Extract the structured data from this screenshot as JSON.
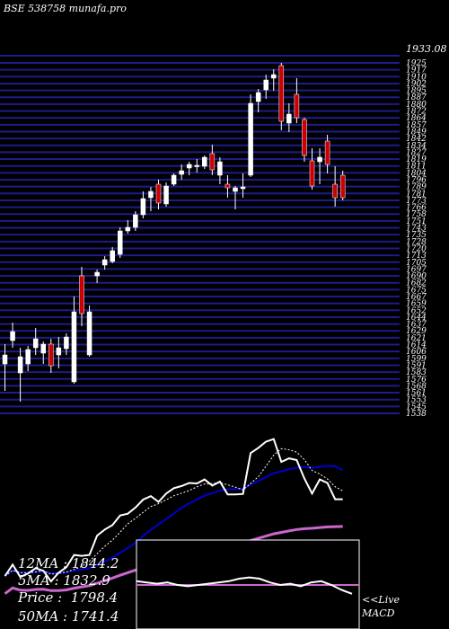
{
  "header": {
    "exchange": "BSE",
    "code": "538758",
    "site": "munafa.pro"
  },
  "stats": {
    "ma12_label": "12MA",
    "ma12": "1844.2",
    "ma5_label": "5MA",
    "ma5": "1832.9",
    "price_label": "Price",
    "price": "1798.4",
    "ma50_label": "50MA",
    "ma50": "1741.4"
  },
  "macd": {
    "label_top": "<<Live",
    "label_bottom": "MACD"
  },
  "colors": {
    "up": "#ffffff",
    "down": "#cc0000",
    "grid": "#1c1c8c",
    "ma12": "#ffffff",
    "ma5": "#ffffff",
    "ma26": "#0000cc",
    "ma50": "#cc66cc",
    "macd": "#ffffff",
    "signal": "#cc66cc"
  },
  "chart_data": {
    "type": "candlestick",
    "ylim": [
      1535,
      1933
    ],
    "top_label": "1933.08",
    "y_ticks": [
      "1925",
      "1917",
      "1910",
      "1902",
      "1895",
      "1887",
      "1880",
      "1872",
      "1864",
      "1857",
      "1849",
      "1842",
      "1834",
      "1827",
      "1819",
      "1811",
      "1804",
      "1796",
      "1789",
      "1781",
      "1773",
      "1766",
      "1758",
      "1751",
      "1743",
      "1735",
      "1728",
      "1720",
      "1713",
      "1705",
      "1697",
      "1690",
      "1682",
      "1675",
      "1667",
      "1659",
      "1652",
      "1644",
      "1637",
      "1629",
      "1621",
      "1614",
      "1606",
      "1599",
      "1591",
      "1583",
      "1576",
      "1568",
      "1561",
      "1553",
      "1545",
      "1538"
    ],
    "candles": [
      {
        "o": 1590,
        "h": 1612,
        "l": 1560,
        "c": 1600
      },
      {
        "o": 1616,
        "h": 1636,
        "l": 1608,
        "c": 1626
      },
      {
        "o": 1580,
        "h": 1608,
        "l": 1548,
        "c": 1598
      },
      {
        "o": 1590,
        "h": 1610,
        "l": 1582,
        "c": 1606
      },
      {
        "o": 1608,
        "h": 1630,
        "l": 1600,
        "c": 1618
      },
      {
        "o": 1602,
        "h": 1615,
        "l": 1590,
        "c": 1612
      },
      {
        "o": 1612,
        "h": 1618,
        "l": 1580,
        "c": 1588
      },
      {
        "o": 1600,
        "h": 1620,
        "l": 1585,
        "c": 1608
      },
      {
        "o": 1607,
        "h": 1624,
        "l": 1600,
        "c": 1620
      },
      {
        "o": 1570,
        "h": 1665,
        "l": 1568,
        "c": 1648
      },
      {
        "o": 1688,
        "h": 1698,
        "l": 1632,
        "c": 1646
      },
      {
        "o": 1600,
        "h": 1655,
        "l": 1598,
        "c": 1648
      },
      {
        "o": 1688,
        "h": 1695,
        "l": 1680,
        "c": 1692
      },
      {
        "o": 1700,
        "h": 1710,
        "l": 1695,
        "c": 1706
      },
      {
        "o": 1704,
        "h": 1720,
        "l": 1702,
        "c": 1716
      },
      {
        "o": 1712,
        "h": 1742,
        "l": 1708,
        "c": 1738
      },
      {
        "o": 1738,
        "h": 1750,
        "l": 1735,
        "c": 1742
      },
      {
        "o": 1742,
        "h": 1760,
        "l": 1738,
        "c": 1756
      },
      {
        "o": 1756,
        "h": 1782,
        "l": 1752,
        "c": 1774
      },
      {
        "o": 1775,
        "h": 1787,
        "l": 1760,
        "c": 1782
      },
      {
        "o": 1790,
        "h": 1795,
        "l": 1762,
        "c": 1769
      },
      {
        "o": 1768,
        "h": 1792,
        "l": 1765,
        "c": 1788
      },
      {
        "o": 1790,
        "h": 1802,
        "l": 1788,
        "c": 1800
      },
      {
        "o": 1801,
        "h": 1812,
        "l": 1795,
        "c": 1805
      },
      {
        "o": 1808,
        "h": 1815,
        "l": 1800,
        "c": 1812
      },
      {
        "o": 1810,
        "h": 1818,
        "l": 1803,
        "c": 1811
      },
      {
        "o": 1810,
        "h": 1822,
        "l": 1807,
        "c": 1820
      },
      {
        "o": 1824,
        "h": 1834,
        "l": 1800,
        "c": 1806
      },
      {
        "o": 1800,
        "h": 1820,
        "l": 1790,
        "c": 1815
      },
      {
        "o": 1790,
        "h": 1800,
        "l": 1775,
        "c": 1786
      },
      {
        "o": 1782,
        "h": 1788,
        "l": 1762,
        "c": 1786
      },
      {
        "o": 1785,
        "h": 1802,
        "l": 1775,
        "c": 1787
      },
      {
        "o": 1800,
        "h": 1890,
        "l": 1798,
        "c": 1880
      },
      {
        "o": 1882,
        "h": 1896,
        "l": 1870,
        "c": 1892
      },
      {
        "o": 1895,
        "h": 1912,
        "l": 1885,
        "c": 1906
      },
      {
        "o": 1908,
        "h": 1918,
        "l": 1894,
        "c": 1912
      },
      {
        "o": 1922,
        "h": 1925,
        "l": 1850,
        "c": 1860
      },
      {
        "o": 1858,
        "h": 1880,
        "l": 1848,
        "c": 1868
      },
      {
        "o": 1890,
        "h": 1908,
        "l": 1858,
        "c": 1864
      },
      {
        "o": 1862,
        "h": 1864,
        "l": 1815,
        "c": 1822
      },
      {
        "o": 1816,
        "h": 1830,
        "l": 1784,
        "c": 1788
      },
      {
        "o": 1815,
        "h": 1830,
        "l": 1790,
        "c": 1820
      },
      {
        "o": 1838,
        "h": 1845,
        "l": 1802,
        "c": 1812
      },
      {
        "o": 1790,
        "h": 1810,
        "l": 1765,
        "c": 1775
      },
      {
        "o": 1800,
        "h": 1805,
        "l": 1772,
        "c": 1775
      }
    ]
  }
}
